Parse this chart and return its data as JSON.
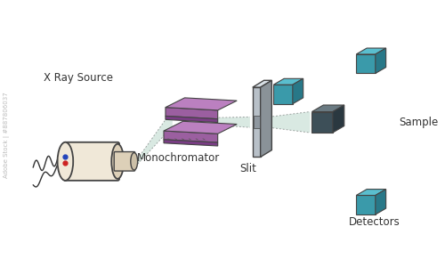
{
  "bg_color": "#ffffff",
  "label_xray": "X Ray Source",
  "label_mono": "Monochromator",
  "label_slit": "Slit",
  "label_detectors": "Detectors",
  "label_sample": "Sample",
  "label_adobe": "Adobe Stock | #887806037",
  "xray_cylinder_color": "#f0e8d8",
  "xray_cylinder_shadow": "#ddd0b8",
  "xray_outline": "#444444",
  "mono_face_color": "#9b5fa0",
  "mono_dark_color": "#7a3d85",
  "mono_light_color": "#bb80c0",
  "slit_face_color": "#b8c0c8",
  "slit_side_color": "#8a9298",
  "slit_top_color": "#d8dfe5",
  "beam_color": "#a0c8b8",
  "beam_alpha": 0.4,
  "sample_dark_face": "#3d4f58",
  "sample_dark_top": "#6a7a82",
  "sample_dark_side": "#2a3840",
  "teal_face": "#3a9aaa",
  "teal_top": "#5abece",
  "teal_side": "#287888",
  "text_color": "#333333",
  "font_size": 8.5
}
